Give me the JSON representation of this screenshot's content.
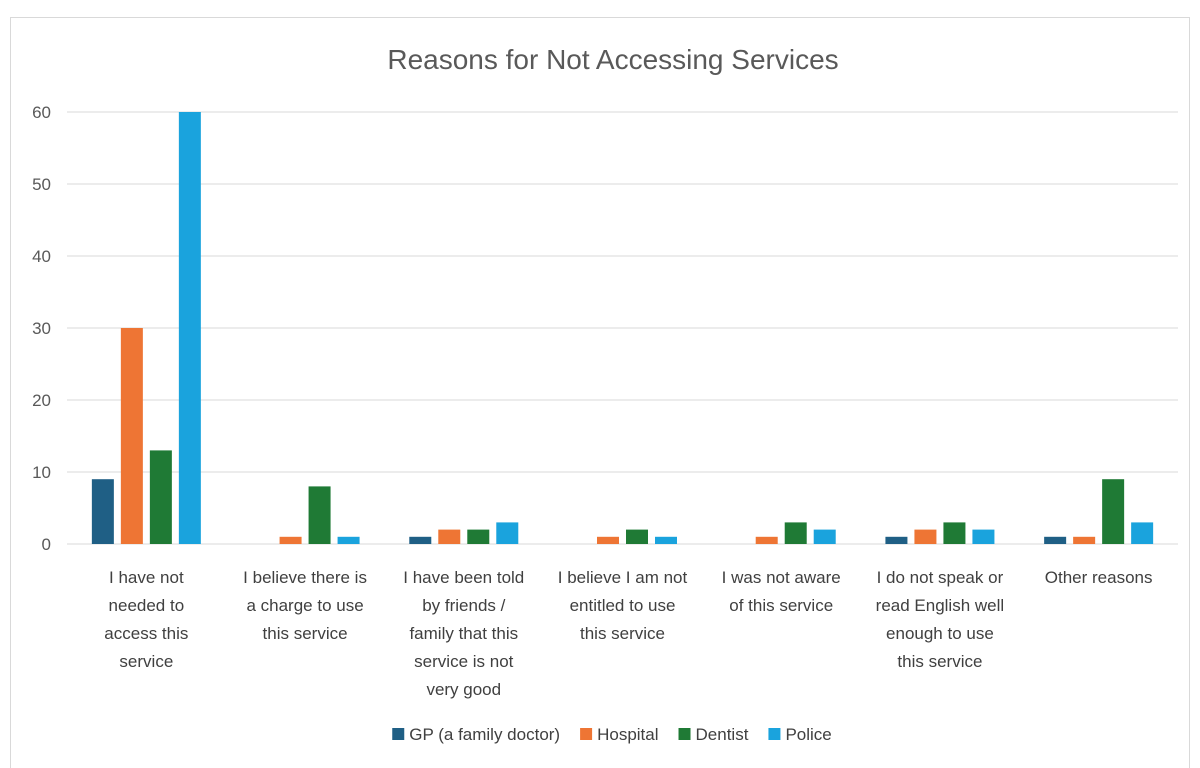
{
  "chart_data": {
    "type": "bar",
    "title": "Reasons for Not Accessing Services",
    "xlabel": "",
    "ylabel": "",
    "ylim": [
      0,
      60
    ],
    "yticks": [
      0,
      10,
      20,
      30,
      40,
      50,
      60
    ],
    "grid": true,
    "legend_position": "bottom",
    "categories": [
      [
        "I have not",
        "needed to",
        "access this",
        "service"
      ],
      [
        "I believe there is",
        "a charge to use",
        "this service"
      ],
      [
        "I have been told",
        "by friends /",
        "family that this",
        "service is not",
        "very good"
      ],
      [
        "I believe I am not",
        "entitled to use",
        "this service"
      ],
      [
        "I was not aware",
        "of this service"
      ],
      [
        "I do not speak or",
        "read English well",
        "enough to use",
        "this service"
      ],
      [
        "Other reasons"
      ]
    ],
    "series": [
      {
        "name": "GP (a family doctor)",
        "color": "#1f5f85",
        "values": [
          9,
          0,
          1,
          0,
          0,
          1,
          1
        ]
      },
      {
        "name": "Hospital",
        "color": "#ee7534",
        "values": [
          30,
          1,
          2,
          1,
          1,
          2,
          1
        ]
      },
      {
        "name": "Dentist",
        "color": "#1f7a35",
        "values": [
          13,
          8,
          2,
          2,
          3,
          3,
          9
        ]
      },
      {
        "name": "Police",
        "color": "#1aa3dd",
        "values": [
          60,
          1,
          3,
          1,
          2,
          2,
          3
        ]
      }
    ]
  }
}
